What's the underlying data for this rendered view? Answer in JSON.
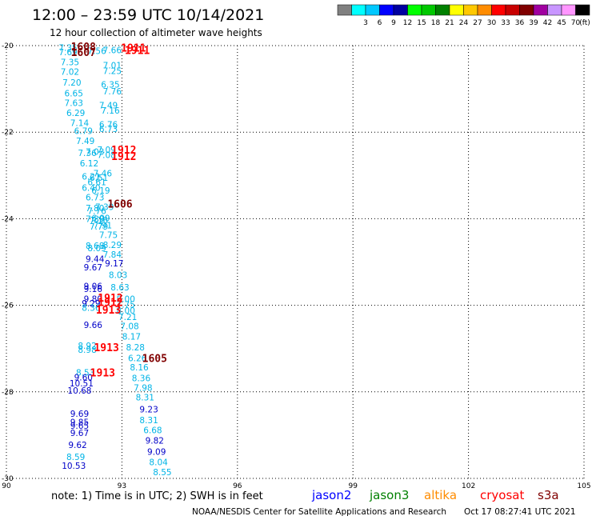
{
  "header": {
    "title": "12:00 – 23:59 UTC 10/14/2021",
    "subtitle": "12 hour collection of altimeter wave heights"
  },
  "legend": {
    "unit": "(ft)",
    "bins": [
      {
        "label": "",
        "color": "#808080"
      },
      {
        "label": "3",
        "color": "#00ffff"
      },
      {
        "label": "6",
        "color": "#00c8ff"
      },
      {
        "label": "9",
        "color": "#0000ff"
      },
      {
        "label": "12",
        "color": "#0000a0"
      },
      {
        "label": "15",
        "color": "#00ff00"
      },
      {
        "label": "18",
        "color": "#00c800"
      },
      {
        "label": "21",
        "color": "#008000"
      },
      {
        "label": "24",
        "color": "#ffff00"
      },
      {
        "label": "27",
        "color": "#ffc800"
      },
      {
        "label": "30",
        "color": "#ff8c00"
      },
      {
        "label": "33",
        "color": "#ff0000"
      },
      {
        "label": "36",
        "color": "#c80000"
      },
      {
        "label": "39",
        "color": "#800000"
      },
      {
        "label": "42",
        "color": "#a000a0"
      },
      {
        "label": "45",
        "color": "#c896ff"
      },
      {
        "label": "70",
        "color": "#ff96ff"
      },
      {
        "label": "",
        "color": "#000000"
      }
    ]
  },
  "footer": {
    "note": "note:  1) Time is in UTC; 2) SWH is in feet",
    "satellites": [
      {
        "name": "jason2",
        "color": "#0000ff"
      },
      {
        "name": "jason3",
        "color": "#008000"
      },
      {
        "name": "altika",
        "color": "#ff8c00"
      },
      {
        "name": "cryosat",
        "color": "#ff0000"
      },
      {
        "name": "s3a",
        "color": "#800000"
      }
    ],
    "credit": "NOAA/NESDIS Center for Satellite Applications and Research",
    "timestamp": "Oct 17 08:27:41 UTC 2021"
  },
  "chart_data": {
    "type": "scatter",
    "xlim": [
      90,
      105
    ],
    "ylim": [
      -30,
      -20
    ],
    "x_ticks": [
      90,
      93,
      96,
      99,
      102,
      105
    ],
    "x_tick_labels": [
      "90",
      "93",
      "96",
      "99",
      "102",
      "105"
    ],
    "y_ticks": [
      -20,
      -22,
      -24,
      -26,
      -28,
      -30
    ],
    "y_tick_labels": [
      "-20",
      "-22",
      "-24",
      "-26",
      "-28",
      "-30"
    ],
    "grid": true,
    "colors": {
      "light": "#00b4e6",
      "dark": "#0000c8",
      "pass_red": "#ff0000",
      "pass_dark": "#800000"
    },
    "points": [
      {
        "x": 91.6,
        "y": -20.05,
        "v": "7.35",
        "c": "light"
      },
      {
        "x": 91.6,
        "y": -20.15,
        "v": "7.69",
        "c": "light"
      },
      {
        "x": 92.75,
        "y": -20.1,
        "v": "7.66",
        "c": "light"
      },
      {
        "x": 92.35,
        "y": -20.12,
        "v": "7.56",
        "c": "light"
      },
      {
        "x": 91.65,
        "y": -20.38,
        "v": "7.35",
        "c": "light"
      },
      {
        "x": 92.75,
        "y": -20.45,
        "v": "7.01",
        "c": "light"
      },
      {
        "x": 91.65,
        "y": -20.6,
        "v": "7.02",
        "c": "light"
      },
      {
        "x": 92.75,
        "y": -20.58,
        "v": "7.25",
        "c": "light"
      },
      {
        "x": 91.7,
        "y": -20.85,
        "v": "7.20",
        "c": "light"
      },
      {
        "x": 92.7,
        "y": -20.9,
        "v": "6.35",
        "c": "light"
      },
      {
        "x": 91.75,
        "y": -21.1,
        "v": "6.65",
        "c": "light"
      },
      {
        "x": 92.75,
        "y": -21.05,
        "v": "7.76",
        "c": "light"
      },
      {
        "x": 91.75,
        "y": -21.32,
        "v": "7.63",
        "c": "light"
      },
      {
        "x": 92.65,
        "y": -21.38,
        "v": "7.49",
        "c": "light"
      },
      {
        "x": 91.8,
        "y": -21.55,
        "v": "6.29",
        "c": "light"
      },
      {
        "x": 92.7,
        "y": -21.5,
        "v": "7.16",
        "c": "light"
      },
      {
        "x": 91.9,
        "y": -21.78,
        "v": "7.14",
        "c": "light"
      },
      {
        "x": 92.65,
        "y": -21.82,
        "v": "6.76",
        "c": "light"
      },
      {
        "x": 92.0,
        "y": -21.97,
        "v": "6.79",
        "c": "light"
      },
      {
        "x": 92.65,
        "y": -21.92,
        "v": "6.73",
        "c": "light"
      },
      {
        "x": 92.05,
        "y": -22.2,
        "v": "7.49",
        "c": "light"
      },
      {
        "x": 92.6,
        "y": -22.4,
        "v": "7.09",
        "c": "light"
      },
      {
        "x": 92.1,
        "y": -22.48,
        "v": "7.36",
        "c": "light"
      },
      {
        "x": 92.6,
        "y": -22.52,
        "v": "7.08",
        "c": "light"
      },
      {
        "x": 92.3,
        "y": -22.45,
        "v": "7.03",
        "c": "light"
      },
      {
        "x": 92.15,
        "y": -22.72,
        "v": "6.12",
        "c": "light"
      },
      {
        "x": 92.5,
        "y": -22.95,
        "v": "7.46",
        "c": "light"
      },
      {
        "x": 92.2,
        "y": -23.02,
        "v": "6.21",
        "c": "light"
      },
      {
        "x": 92.4,
        "y": -23.05,
        "v": "6.51",
        "c": "light"
      },
      {
        "x": 92.35,
        "y": -23.15,
        "v": "6.61",
        "c": "light"
      },
      {
        "x": 92.2,
        "y": -23.28,
        "v": "6.40",
        "c": "light"
      },
      {
        "x": 92.45,
        "y": -23.35,
        "v": "6.19",
        "c": "light"
      },
      {
        "x": 92.3,
        "y": -23.5,
        "v": "6.73",
        "c": "light"
      },
      {
        "x": 92.3,
        "y": -23.75,
        "v": "7.80",
        "c": "light"
      },
      {
        "x": 92.55,
        "y": -23.72,
        "v": "7.39",
        "c": "light"
      },
      {
        "x": 92.35,
        "y": -23.82,
        "v": "7.76",
        "c": "light"
      },
      {
        "x": 92.3,
        "y": -24.0,
        "v": "7.89",
        "c": "light"
      },
      {
        "x": 92.45,
        "y": -23.98,
        "v": "6.99",
        "c": "light"
      },
      {
        "x": 92.4,
        "y": -24.03,
        "v": "7.16",
        "c": "light"
      },
      {
        "x": 92.4,
        "y": -24.18,
        "v": "7.79",
        "c": "light"
      },
      {
        "x": 92.5,
        "y": -24.15,
        "v": "7.91",
        "c": "light"
      },
      {
        "x": 92.65,
        "y": -24.37,
        "v": "7.75",
        "c": "light"
      },
      {
        "x": 92.3,
        "y": -24.62,
        "v": "8.68",
        "c": "light"
      },
      {
        "x": 92.35,
        "y": -24.68,
        "v": "8.09",
        "c": "light"
      },
      {
        "x": 92.75,
        "y": -24.6,
        "v": "8.29",
        "c": "light"
      },
      {
        "x": 92.75,
        "y": -24.82,
        "v": "7.84",
        "c": "light"
      },
      {
        "x": 92.3,
        "y": -24.93,
        "v": "9.44",
        "c": "dark"
      },
      {
        "x": 92.8,
        "y": -25.03,
        "v": "9.17",
        "c": "dark"
      },
      {
        "x": 92.25,
        "y": -25.12,
        "v": "9.67",
        "c": "dark"
      },
      {
        "x": 92.9,
        "y": -25.3,
        "v": "8.03",
        "c": "light"
      },
      {
        "x": 92.25,
        "y": -25.55,
        "v": "9.06",
        "c": "dark"
      },
      {
        "x": 92.25,
        "y": -25.62,
        "v": "9.16",
        "c": "dark"
      },
      {
        "x": 92.95,
        "y": -25.58,
        "v": "8.63",
        "c": "light"
      },
      {
        "x": 92.25,
        "y": -25.85,
        "v": "9.80",
        "c": "dark"
      },
      {
        "x": 93.1,
        "y": -25.85,
        "v": "8.00",
        "c": "light"
      },
      {
        "x": 92.2,
        "y": -25.95,
        "v": "9.29",
        "c": "dark"
      },
      {
        "x": 93.1,
        "y": -25.98,
        "v": "7.75",
        "c": "light"
      },
      {
        "x": 92.2,
        "y": -26.05,
        "v": "8.36",
        "c": "light"
      },
      {
        "x": 93.1,
        "y": -26.12,
        "v": "8.00",
        "c": "light"
      },
      {
        "x": 93.15,
        "y": -26.27,
        "v": "7.21",
        "c": "light"
      },
      {
        "x": 92.25,
        "y": -26.45,
        "v": "9.66",
        "c": "dark"
      },
      {
        "x": 93.2,
        "y": -26.48,
        "v": "7.08",
        "c": "light"
      },
      {
        "x": 93.25,
        "y": -26.72,
        "v": "8.17",
        "c": "light"
      },
      {
        "x": 92.1,
        "y": -26.93,
        "v": "8.92",
        "c": "light"
      },
      {
        "x": 92.1,
        "y": -27.02,
        "v": "8.98",
        "c": "light"
      },
      {
        "x": 93.35,
        "y": -26.97,
        "v": "8.28",
        "c": "light"
      },
      {
        "x": 93.4,
        "y": -27.22,
        "v": "6.26",
        "c": "light"
      },
      {
        "x": 93.45,
        "y": -27.43,
        "v": "8.16",
        "c": "light"
      },
      {
        "x": 92.05,
        "y": -27.55,
        "v": "8.53",
        "c": "light"
      },
      {
        "x": 92.0,
        "y": -27.66,
        "v": "9.60",
        "c": "dark"
      },
      {
        "x": 93.5,
        "y": -27.68,
        "v": "8.36",
        "c": "light"
      },
      {
        "x": 91.95,
        "y": -27.8,
        "v": "10.51",
        "c": "dark"
      },
      {
        "x": 93.55,
        "y": -27.9,
        "v": "7.98",
        "c": "light"
      },
      {
        "x": 91.9,
        "y": -27.97,
        "v": "10.68",
        "c": "dark"
      },
      {
        "x": 93.6,
        "y": -28.12,
        "v": "8.31",
        "c": "light"
      },
      {
        "x": 93.7,
        "y": -28.4,
        "v": "9.23",
        "c": "dark"
      },
      {
        "x": 91.9,
        "y": -28.5,
        "v": "9.69",
        "c": "dark"
      },
      {
        "x": 93.7,
        "y": -28.65,
        "v": "8.31",
        "c": "light"
      },
      {
        "x": 91.9,
        "y": -28.7,
        "v": "9.85",
        "c": "dark"
      },
      {
        "x": 91.9,
        "y": -28.78,
        "v": "9.65",
        "c": "dark"
      },
      {
        "x": 93.8,
        "y": -28.88,
        "v": "6.68",
        "c": "light"
      },
      {
        "x": 91.9,
        "y": -28.95,
        "v": "9.67",
        "c": "dark"
      },
      {
        "x": 93.85,
        "y": -29.12,
        "v": "9.82",
        "c": "dark"
      },
      {
        "x": 91.85,
        "y": -29.22,
        "v": "9.62",
        "c": "dark"
      },
      {
        "x": 93.9,
        "y": -29.38,
        "v": "9.09",
        "c": "dark"
      },
      {
        "x": 91.8,
        "y": -29.5,
        "v": "8.59",
        "c": "light"
      },
      {
        "x": 91.75,
        "y": -29.7,
        "v": "10.53",
        "c": "dark"
      },
      {
        "x": 93.95,
        "y": -29.62,
        "v": "8.04",
        "c": "light"
      },
      {
        "x": 94.05,
        "y": -29.85,
        "v": "8.55",
        "c": "light"
      }
    ],
    "passes": [
      {
        "x": 92.0,
        "y": -20.02,
        "label": "1608",
        "c": "pass_dark"
      },
      {
        "x": 92.0,
        "y": -20.15,
        "label": "1607",
        "c": "pass_dark"
      },
      {
        "x": 93.3,
        "y": -20.05,
        "label": "1911",
        "c": "pass_red"
      },
      {
        "x": 93.4,
        "y": -20.1,
        "label": "1911",
        "c": "pass_red"
      },
      {
        "x": 93.05,
        "y": -22.4,
        "label": "1912",
        "c": "pass_red"
      },
      {
        "x": 93.05,
        "y": -22.55,
        "label": "1912",
        "c": "pass_red"
      },
      {
        "x": 92.95,
        "y": -23.65,
        "label": "1606",
        "c": "pass_dark"
      },
      {
        "x": 92.7,
        "y": -25.82,
        "label": "1912",
        "c": "pass_red"
      },
      {
        "x": 92.7,
        "y": -25.92,
        "label": "1912",
        "c": "pass_red"
      },
      {
        "x": 92.65,
        "y": -26.1,
        "label": "1913",
        "c": "pass_red"
      },
      {
        "x": 92.6,
        "y": -26.97,
        "label": "1913",
        "c": "pass_red"
      },
      {
        "x": 93.85,
        "y": -27.22,
        "label": "1605",
        "c": "pass_dark"
      },
      {
        "x": 92.5,
        "y": -27.55,
        "label": "1913",
        "c": "pass_red"
      }
    ]
  }
}
